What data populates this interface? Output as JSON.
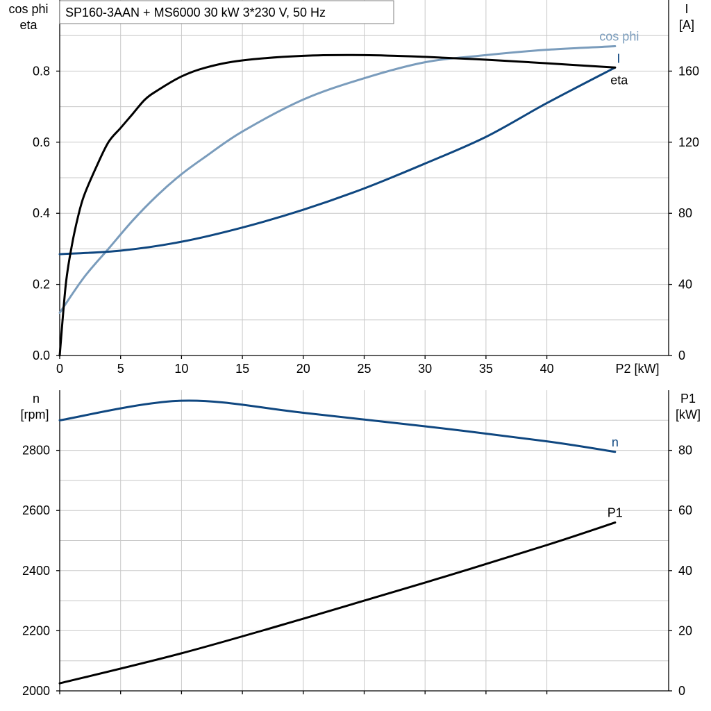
{
  "chart_data": [
    {
      "type": "line",
      "title": "SP160-3AAN + MS6000   30 kW   3*230 V, 50 Hz",
      "xlabel": "P2 [kW]",
      "ylabel_left": [
        "cos phi",
        "eta"
      ],
      "ylabel_right": [
        "I",
        "[A]"
      ],
      "xlim": [
        0,
        50
      ],
      "ylim_left": [
        0,
        1.0
      ],
      "ylim_right": [
        0,
        200
      ],
      "x_ticks": [
        "0",
        "5",
        "10",
        "15",
        "20",
        "25",
        "30",
        "35",
        "40"
      ],
      "y_ticks_left": [
        "0.0",
        "0.2",
        "0.4",
        "0.6",
        "0.8"
      ],
      "y_ticks_right": [
        "0",
        "40",
        "80",
        "120",
        "160"
      ],
      "grid": true,
      "colors": {
        "eta": "#000000",
        "cos_phi": "#7a9cbc",
        "I": "#0f4780",
        "grid": "#c8c8c8"
      },
      "series": [
        {
          "name": "eta",
          "axis": "left",
          "x": [
            0,
            0.5,
            1,
            1.5,
            2,
            3,
            4,
            5,
            6,
            7,
            8,
            10,
            12,
            15,
            20,
            25,
            30,
            35,
            40,
            45.6
          ],
          "y": [
            0,
            0.2,
            0.31,
            0.39,
            0.45,
            0.53,
            0.6,
            0.64,
            0.68,
            0.72,
            0.745,
            0.785,
            0.81,
            0.83,
            0.843,
            0.845,
            0.84,
            0.832,
            0.822,
            0.81
          ]
        },
        {
          "name": "cos phi",
          "axis": "left",
          "x": [
            0,
            2,
            4,
            6,
            8,
            10,
            12,
            15,
            20,
            25,
            30,
            35,
            40,
            45.6
          ],
          "y": [
            0.12,
            0.22,
            0.3,
            0.38,
            0.45,
            0.51,
            0.56,
            0.63,
            0.72,
            0.78,
            0.825,
            0.845,
            0.86,
            0.87
          ]
        },
        {
          "name": "I",
          "axis": "right",
          "x": [
            0,
            5,
            10,
            15,
            20,
            25,
            30,
            35,
            40,
            45.6
          ],
          "y": [
            57,
            59,
            64,
            72,
            82,
            94,
            108,
            123,
            142,
            162
          ]
        }
      ]
    },
    {
      "type": "line",
      "xlim": [
        0,
        50
      ],
      "ylabel_left": [
        "n",
        "[rpm]"
      ],
      "ylabel_right": [
        "P1",
        "[kW]"
      ],
      "ylim_left": [
        2000,
        3000
      ],
      "ylim_right": [
        0,
        100
      ],
      "y_ticks_left": [
        "2000",
        "2200",
        "2400",
        "2600",
        "2800"
      ],
      "y_ticks_right": [
        "0",
        "20",
        "40",
        "60",
        "80"
      ],
      "grid": true,
      "colors": {
        "n": "#0f4780",
        "P1": "#000000"
      },
      "series": [
        {
          "name": "n",
          "axis": "left",
          "x": [
            0,
            10,
            20,
            30,
            40,
            45.6
          ],
          "y": [
            2900,
            2965,
            2925,
            2880,
            2830,
            2795
          ]
        },
        {
          "name": "P1",
          "axis": "right",
          "x": [
            0,
            10,
            20,
            30,
            40,
            45.6
          ],
          "y": [
            2.5,
            12.5,
            24,
            36,
            48.5,
            56
          ]
        }
      ]
    }
  ]
}
